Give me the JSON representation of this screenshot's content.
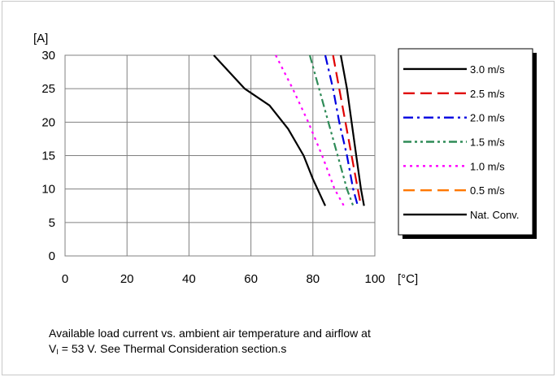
{
  "chart_data": {
    "type": "line",
    "title": "",
    "ylabel": "[A]",
    "xlabel": "[°C]",
    "xlim": [
      0,
      100
    ],
    "ylim": [
      0,
      30
    ],
    "x_ticks": [
      "0",
      "20",
      "40",
      "60",
      "80",
      "100"
    ],
    "y_ticks": [
      "0",
      "5",
      "10",
      "15",
      "20",
      "25",
      "30"
    ],
    "grid": true,
    "legend_position": "right",
    "series": [
      {
        "name": "3.0 m/s",
        "color": "#000000",
        "style": "solid",
        "points": [
          [
            89,
            30
          ],
          [
            91,
            25
          ],
          [
            92.5,
            20
          ],
          [
            94,
            15
          ],
          [
            95.5,
            10
          ],
          [
            96.5,
            7.5
          ]
        ]
      },
      {
        "name": "2.5 m/s",
        "color": "#e00000",
        "style": "dash",
        "points": [
          [
            86.5,
            30
          ],
          [
            88.5,
            25
          ],
          [
            90.5,
            20
          ],
          [
            92.5,
            15
          ],
          [
            94.5,
            10
          ],
          [
            95.5,
            7.5
          ]
        ]
      },
      {
        "name": "2.0 m/s",
        "color": "#0000e0",
        "style": "dashdot",
        "points": [
          [
            84,
            30
          ],
          [
            86.5,
            25
          ],
          [
            88.5,
            20
          ],
          [
            91,
            15
          ],
          [
            93,
            10
          ],
          [
            94.5,
            7.5
          ]
        ]
      },
      {
        "name": "1.5 m/s",
        "color": "#2e8b57",
        "style": "dashdotdot",
        "points": [
          [
            79,
            30
          ],
          [
            82,
            25
          ],
          [
            85,
            20
          ],
          [
            88,
            15
          ],
          [
            91,
            10
          ],
          [
            93,
            7.5
          ]
        ]
      },
      {
        "name": "1.0 m/s",
        "color": "#ff00ff",
        "style": "dot",
        "points": [
          [
            68,
            30
          ],
          [
            73.5,
            25
          ],
          [
            78.5,
            20
          ],
          [
            83,
            15
          ],
          [
            87,
            10
          ],
          [
            90,
            7.5
          ]
        ]
      },
      {
        "name": "0.5 m/s",
        "color": "#ff7700",
        "style": "dash",
        "points": []
      },
      {
        "name": "Nat. Conv.",
        "color": "#000000",
        "style": "solid",
        "points": [
          [
            48,
            30
          ],
          [
            58,
            25
          ],
          [
            66,
            22.5
          ],
          [
            72,
            19
          ],
          [
            77,
            15
          ],
          [
            80,
            11.5
          ],
          [
            84,
            7.5
          ]
        ]
      }
    ]
  },
  "caption": {
    "line1": "Available load current vs. ambient air temperature and airflow at",
    "line2_symbol": "V",
    "line2_subscript": "I",
    "line2_rest": " = 53 V. See Thermal Consideration section.s"
  }
}
